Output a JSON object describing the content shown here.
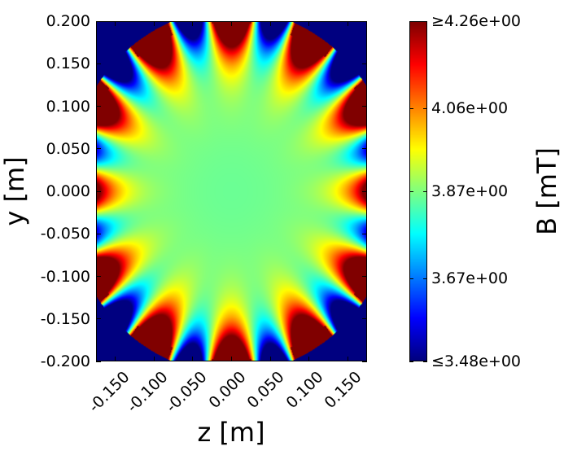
{
  "chart_data": {
    "type": "heatmap",
    "title": "",
    "xlabel": "z [m]",
    "ylabel": "y [m]",
    "colorbar_label": "B [mT]",
    "colormap": "jet",
    "x_range": [
      -0.175,
      0.175
    ],
    "y_range": [
      -0.2,
      0.2
    ],
    "x_ticks": [
      "-0.150",
      "-0.100",
      "-0.050",
      "0.000",
      "0.050",
      "0.100",
      "0.150"
    ],
    "x_tick_values": [
      -0.15,
      -0.1,
      -0.05,
      0.0,
      0.05,
      0.1,
      0.15
    ],
    "y_ticks": [
      "0.200",
      "0.150",
      "0.100",
      "0.050",
      "0.000",
      "-0.050",
      "-0.100",
      "-0.150",
      "-0.200"
    ],
    "y_tick_values": [
      0.2,
      0.15,
      0.1,
      0.05,
      0.0,
      -0.05,
      -0.1,
      -0.15,
      -0.2
    ],
    "color_range": [
      3.48,
      4.26
    ],
    "colorbar_ticks": [
      "≥4.26e+00",
      "4.06e+00",
      "3.87e+00",
      "3.67e+00",
      "≤3.48e+00"
    ],
    "colorbar_tick_values": [
      4.26,
      4.06,
      3.87,
      3.67,
      3.48
    ],
    "magnet_count": 12,
    "boundary_radius": 0.215,
    "grid": false
  }
}
